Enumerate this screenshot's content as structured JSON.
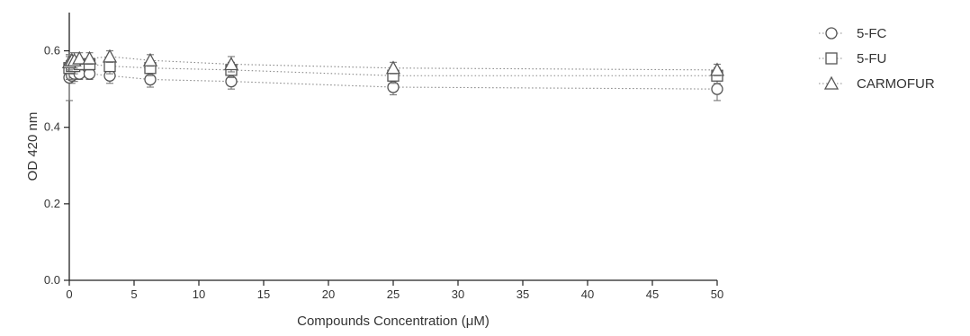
{
  "chart_data": {
    "type": "scatter",
    "title": "",
    "xlabel": "Compounds Concentration (μM)",
    "ylabel": "OD 420 nm",
    "xlim": [
      0,
      50
    ],
    "ylim": [
      0,
      0.7
    ],
    "xticks": [
      0,
      5,
      10,
      15,
      20,
      25,
      30,
      35,
      40,
      45,
      50
    ],
    "yticks": [
      0.0,
      0.2,
      0.4,
      0.6
    ],
    "ytick_labels": [
      "0.0",
      "0.2",
      "0.4",
      "0.6"
    ],
    "grid": false,
    "legend_position": "top-right",
    "series": [
      {
        "name": "5-FC",
        "marker": "circle",
        "x": [
          0,
          0.1953,
          0.3906,
          0.7813,
          1.5625,
          3.125,
          6.25,
          12.5,
          25,
          50
        ],
        "y": [
          0.53,
          0.535,
          0.54,
          0.54,
          0.54,
          0.535,
          0.525,
          0.52,
          0.505,
          0.5
        ],
        "err": [
          0.06,
          0.02,
          0.02,
          0.015,
          0.015,
          0.02,
          0.02,
          0.02,
          0.02,
          0.03
        ]
      },
      {
        "name": "5-FU",
        "marker": "square",
        "x": [
          0,
          0.1953,
          0.3906,
          0.7813,
          1.5625,
          3.125,
          6.25,
          12.5,
          25,
          50
        ],
        "y": [
          0.555,
          0.56,
          0.56,
          0.565,
          0.565,
          0.56,
          0.555,
          0.55,
          0.535,
          0.535
        ],
        "err": [
          0.03,
          0.02,
          0.02,
          0.015,
          0.015,
          0.02,
          0.02,
          0.02,
          0.02,
          0.02
        ]
      },
      {
        "name": "CARMOFUR",
        "marker": "triangle",
        "x": [
          0,
          0.1953,
          0.3906,
          0.7813,
          1.5625,
          3.125,
          6.25,
          12.5,
          25,
          50
        ],
        "y": [
          0.57,
          0.575,
          0.575,
          0.58,
          0.58,
          0.585,
          0.575,
          0.565,
          0.555,
          0.55
        ],
        "err": [
          0.02,
          0.02,
          0.02,
          0.015,
          0.015,
          0.015,
          0.015,
          0.02,
          0.015,
          0.015
        ]
      }
    ]
  }
}
